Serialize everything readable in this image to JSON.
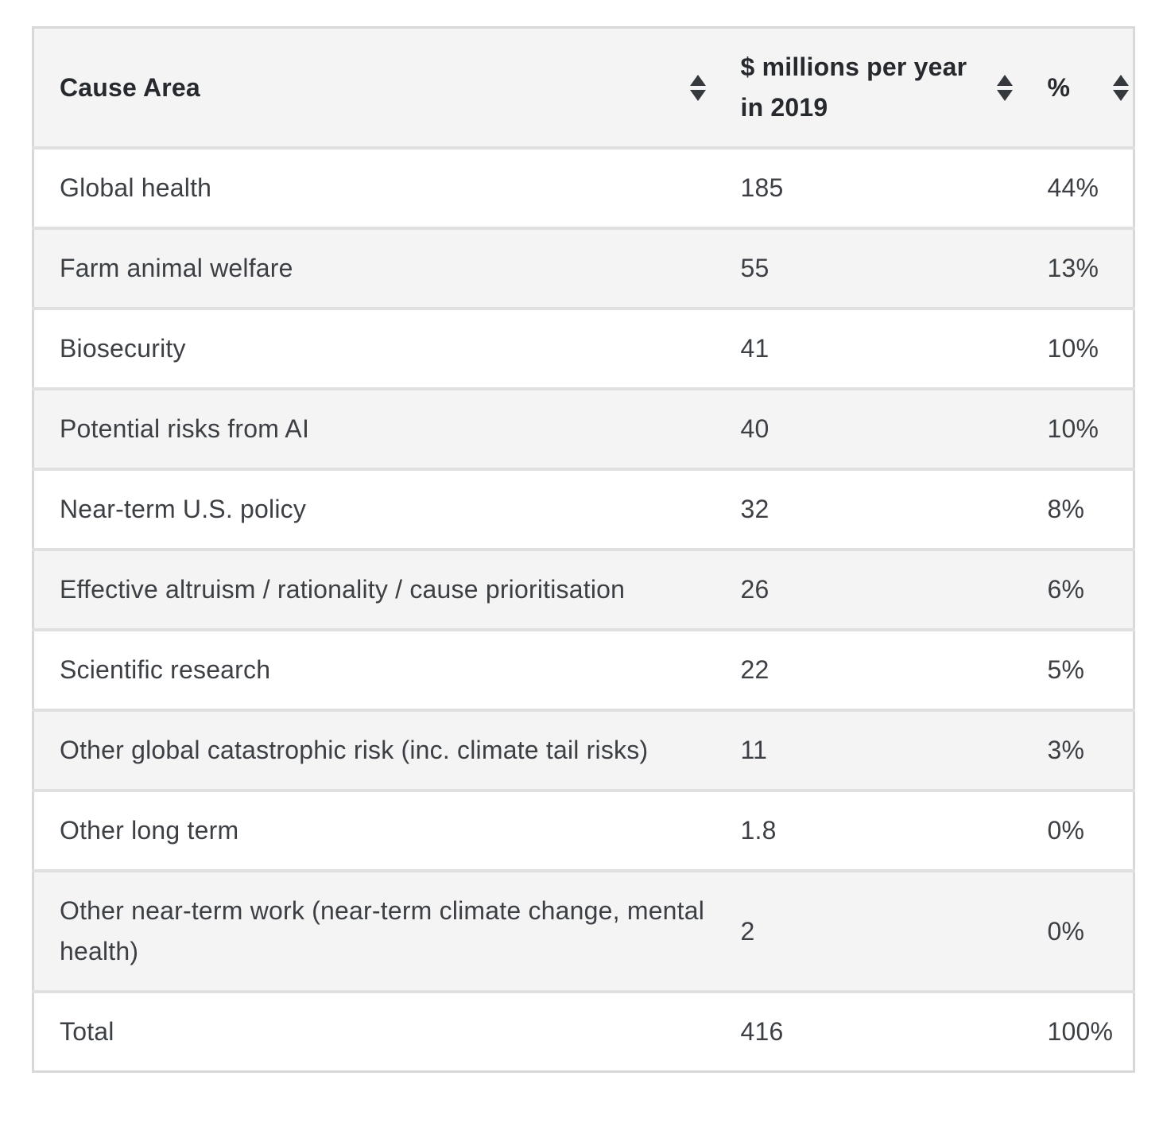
{
  "chart_data": {
    "type": "table",
    "columns": [
      "Cause Area",
      "$ millions per year in 2019",
      "%"
    ],
    "rows": [
      [
        "Global health",
        "185",
        "44%"
      ],
      [
        "Farm animal welfare",
        "55",
        "13%"
      ],
      [
        "Biosecurity",
        "41",
        "10%"
      ],
      [
        "Potential risks from AI",
        "40",
        "10%"
      ],
      [
        "Near-term U.S. policy",
        "32",
        "8%"
      ],
      [
        "Effective altruism / rationality / cause prioritisation",
        "26",
        "6%"
      ],
      [
        "Scientific research",
        "22",
        "5%"
      ],
      [
        "Other global catastrophic risk (inc. climate tail risks)",
        "11",
        "3%"
      ],
      [
        "Other long term",
        "1.8",
        "0%"
      ],
      [
        "Other near-term work (near-term climate change, mental health)",
        "2",
        "0%"
      ],
      [
        "Total",
        "416",
        "100%"
      ]
    ],
    "layout_hints": {
      "sortable_columns": true,
      "alternating_row_shading": true,
      "total_row_index": 10
    }
  },
  "header": {
    "col1": {
      "label": "Cause Area"
    },
    "col2": {
      "line1": "$ millions per year",
      "line2": "in 2019"
    },
    "col3": {
      "label": "%"
    }
  },
  "icons": {
    "sort": "up-down-triangles"
  },
  "colors": {
    "page_background": "#ffffff",
    "header_bg": "#f4f4f4",
    "row_alt_bg": "#f4f4f4",
    "row_bg": "#ffffff",
    "row_border": "#e0e0e0",
    "outer_border": "#d8d8d8",
    "body_text": "#3c4045",
    "header_text": "#26292e",
    "sort_icon": "#35383c"
  }
}
